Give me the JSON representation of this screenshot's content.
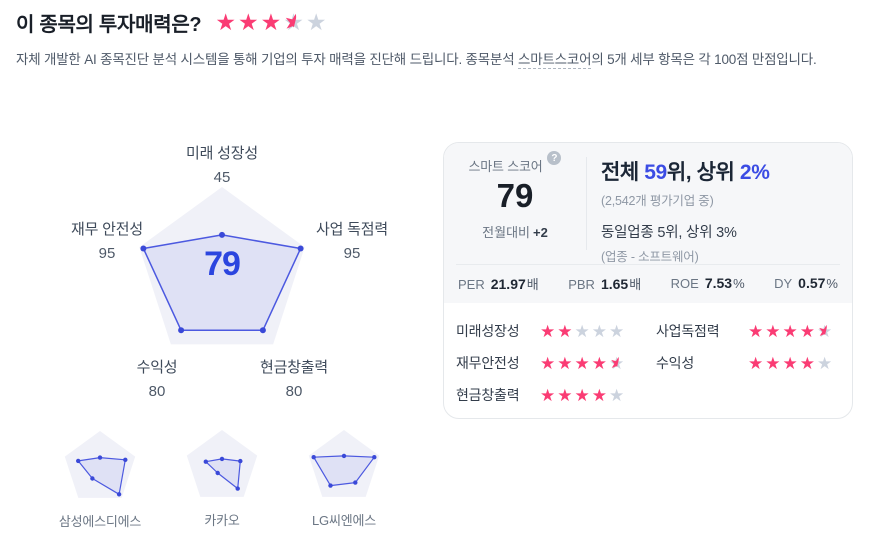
{
  "header": {
    "title": "이 종목의 투자매력은?",
    "rating": 3.5,
    "subtitle_before": "자체 개발한 AI 종목진단 분석 시스템을 통해 기업의 투자 매력을 진단해 드립니다. 종목분석 ",
    "subtitle_term": "스마트스코어",
    "subtitle_after": "의 5개 세부 항목은 각 100점 만점입니다."
  },
  "chart_data": [
    {
      "type": "radar",
      "title": "스마트스코어",
      "categories": [
        "미래 성장성",
        "사업 독점력",
        "현금창출력",
        "수익성",
        "재무 안전성"
      ],
      "values": [
        45,
        95,
        80,
        80,
        95
      ],
      "max": 100,
      "center_score": 79,
      "legend_position": "none",
      "grid": false
    },
    {
      "type": "radar",
      "name": "삼성에스디에스",
      "categories": [
        "미래 성장성",
        "사업 독점력",
        "현금창출력",
        "수익성",
        "재무 안전성"
      ],
      "values": [
        28,
        72,
        88,
        35,
        62
      ],
      "max": 100
    },
    {
      "type": "radar",
      "name": "카카오",
      "categories": [
        "미래 성장성",
        "사업 독점력",
        "현금창출력",
        "수익성",
        "재무 안전성"
      ],
      "values": [
        22,
        52,
        72,
        20,
        46
      ],
      "max": 100
    },
    {
      "type": "radar",
      "name": "LG씨엔에스",
      "categories": [
        "미래 성장성",
        "사업 독점력",
        "현금창출력",
        "수익성",
        "재무 안전성"
      ],
      "values": [
        30,
        86,
        52,
        62,
        86
      ],
      "max": 100
    }
  ],
  "score_card": {
    "score_label": "스마트 스코어",
    "help_icon": "?",
    "score": "79",
    "mom_label": "전월대비",
    "mom_value": "+2",
    "rank_overall": {
      "prefix": "전체 ",
      "rank": "59",
      "mid": "위, 상위 ",
      "pct": "2%"
    },
    "rank_note": "(2,542개 평가기업 중)",
    "industry_line": "동일업종 5위, 상위 3%",
    "industry_note": "(업종 - 소프트웨어)",
    "metrics": [
      {
        "label": "PER",
        "value": "21.97",
        "suffix": "배"
      },
      {
        "label": "PBR",
        "value": "1.65",
        "suffix": "배"
      },
      {
        "label": "ROE",
        "value": "7.53",
        "suffix": "%"
      },
      {
        "label": "DY",
        "value": "0.57",
        "suffix": "%"
      }
    ],
    "ratings_left": [
      {
        "label": "미래성장성",
        "stars": 2
      },
      {
        "label": "재무안전성",
        "stars": 4.5
      },
      {
        "label": "현금창출력",
        "stars": 4
      }
    ],
    "ratings_right": [
      {
        "label": "사업독점력",
        "stars": 4.5
      },
      {
        "label": "수익성",
        "stars": 4
      }
    ]
  },
  "colors": {
    "accent_pink": "#fa3c74",
    "star_gray": "#ccd3de",
    "accent_blue": "#3b4ce4",
    "radar_stroke": "#4c59e0",
    "radar_fill": "rgba(76,89,224,0.10)",
    "radar_dot": "#3a49d8",
    "pentagon_bg": "#f0f1f8"
  }
}
